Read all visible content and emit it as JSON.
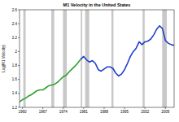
{
  "chart_data": {
    "type": "line",
    "title": "M1 Velocity in the United States",
    "y_label": "Log(M1 Velocity)",
    "x": [
      1959,
      1960,
      1961,
      1962,
      1963,
      1964,
      1965,
      1966,
      1967,
      1968,
      1969,
      1970,
      1971,
      1972,
      1973,
      1974,
      1975,
      1976,
      1977,
      1978,
      1979,
      1980,
      1981,
      1982,
      1983,
      1984,
      1985,
      1986,
      1987,
      1988,
      1989,
      1990,
      1991,
      1992,
      1993,
      1994,
      1995,
      1996,
      1997,
      1998,
      1999,
      2000,
      2001,
      2002,
      2003,
      2004,
      2005,
      2006,
      2007,
      2008,
      2009,
      2010,
      2011,
      2012
    ],
    "series": [
      {
        "color": "#2ca02c",
        "values": [
          1.28,
          1.31,
          1.33,
          1.36,
          1.38,
          1.41,
          1.44,
          1.45,
          1.45,
          1.48,
          1.51,
          1.52,
          1.53,
          1.56,
          1.6,
          1.64,
          1.66,
          1.71,
          1.75,
          1.79,
          1.84,
          1.89,
          null,
          null,
          null,
          null,
          null,
          null,
          null,
          null,
          null,
          null,
          null,
          null,
          null,
          null,
          null,
          null,
          null,
          null,
          null,
          null,
          null,
          null,
          null,
          null,
          null,
          null,
          null,
          null,
          null,
          null,
          null,
          null
        ]
      },
      {
        "color": "#1f3fd0",
        "values": [
          null,
          null,
          null,
          null,
          null,
          null,
          null,
          null,
          null,
          null,
          null,
          null,
          null,
          null,
          null,
          null,
          null,
          null,
          null,
          null,
          null,
          1.89,
          1.93,
          1.88,
          1.85,
          1.87,
          1.83,
          1.74,
          1.72,
          1.75,
          1.78,
          1.78,
          1.76,
          1.69,
          1.65,
          1.68,
          1.74,
          1.83,
          1.93,
          2.0,
          2.05,
          2.14,
          2.1,
          2.14,
          2.15,
          2.18,
          2.24,
          2.32,
          2.37,
          2.33,
          2.16,
          2.12,
          2.1,
          2.09
        ]
      }
    ],
    "recessions": [
      [
        1960.3,
        1961.1
      ],
      [
        1969.9,
        1970.9
      ],
      [
        1973.9,
        1975.2
      ],
      [
        1980.0,
        1980.5
      ],
      [
        1981.5,
        1982.9
      ],
      [
        1990.5,
        1991.2
      ],
      [
        2001.2,
        2001.9
      ],
      [
        2007.9,
        2009.5
      ]
    ],
    "xlim": [
      1959,
      2012
    ],
    "xticks": [
      1960,
      1967,
      1974,
      1981,
      1988,
      1995,
      2002,
      2009
    ],
    "ylim": [
      1.2,
      2.6
    ],
    "yticks": [
      1.2,
      1.4,
      1.6,
      1.8,
      2.0,
      2.2,
      2.4,
      2.6
    ]
  }
}
